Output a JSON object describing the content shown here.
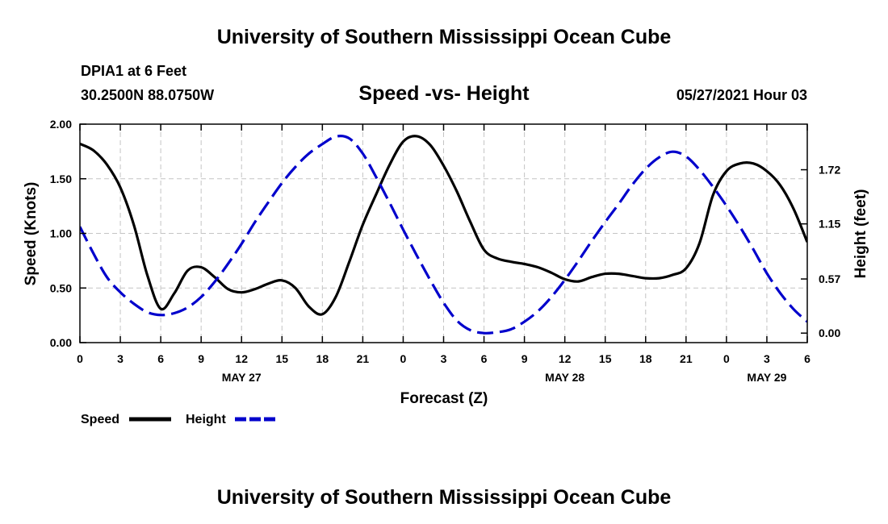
{
  "header": {
    "title": "University of Southern Mississippi Ocean Cube",
    "station": "DPIA1 at 6 Feet",
    "coords": "30.2500N  88.0750W",
    "subtitle": "Speed -vs- Height",
    "datetime": "05/27/2021 Hour 03"
  },
  "footer": {
    "title": "University of Southern Mississippi Ocean Cube"
  },
  "chart_data": {
    "type": "line",
    "title": "Speed -vs- Height",
    "xlabel": "Forecast (Z)",
    "ylabel": "Speed (Knots)",
    "y2label": "Height (feet)",
    "xlim": [
      0,
      54
    ],
    "ylim": [
      0,
      2
    ],
    "y2lim": [
      -0.1,
      2.2
    ],
    "grid": true,
    "x_ticks": [
      {
        "x": 0,
        "label": "0"
      },
      {
        "x": 3,
        "label": "3"
      },
      {
        "x": 6,
        "label": "6"
      },
      {
        "x": 9,
        "label": "9"
      },
      {
        "x": 12,
        "label": "12"
      },
      {
        "x": 15,
        "label": "15"
      },
      {
        "x": 18,
        "label": "18"
      },
      {
        "x": 21,
        "label": "21"
      },
      {
        "x": 24,
        "label": "0"
      },
      {
        "x": 27,
        "label": "3"
      },
      {
        "x": 30,
        "label": "6"
      },
      {
        "x": 33,
        "label": "9"
      },
      {
        "x": 36,
        "label": "12"
      },
      {
        "x": 39,
        "label": "15"
      },
      {
        "x": 42,
        "label": "18"
      },
      {
        "x": 45,
        "label": "21"
      },
      {
        "x": 48,
        "label": "0"
      },
      {
        "x": 51,
        "label": "3"
      },
      {
        "x": 54,
        "label": "6"
      }
    ],
    "date_labels": [
      {
        "x": 12,
        "label": "MAY 27"
      },
      {
        "x": 36,
        "label": "MAY 28"
      },
      {
        "x": 51,
        "label": "MAY 29"
      }
    ],
    "y_ticks": [
      {
        "v": 0,
        "label": "0.00"
      },
      {
        "v": 0.5,
        "label": "0.50"
      },
      {
        "v": 1,
        "label": "1.00"
      },
      {
        "v": 1.5,
        "label": "1.50"
      },
      {
        "v": 2,
        "label": "2.00"
      }
    ],
    "y2_ticks": [
      {
        "v": 0,
        "label": "0.00"
      },
      {
        "v": 0.57,
        "label": "0.57"
      },
      {
        "v": 1.15,
        "label": "1.15"
      },
      {
        "v": 1.72,
        "label": "1.72"
      }
    ],
    "series": [
      {
        "name": "Speed",
        "axis": "left",
        "color": "#000000",
        "dash": "solid",
        "x": [
          0,
          1,
          2,
          3,
          4,
          5,
          6,
          7,
          8,
          9,
          10,
          11,
          12,
          13,
          14,
          15,
          16,
          17,
          18,
          19,
          20,
          21,
          22,
          23,
          24,
          25,
          26,
          27,
          28,
          29,
          30,
          31,
          32,
          33,
          34,
          35,
          36,
          37,
          38,
          39,
          40,
          41,
          42,
          43,
          44,
          45,
          46,
          47,
          48,
          49,
          50,
          51,
          52,
          53,
          54
        ],
        "values": [
          1.82,
          1.76,
          1.63,
          1.42,
          1.08,
          0.62,
          0.31,
          0.45,
          0.66,
          0.69,
          0.6,
          0.49,
          0.46,
          0.49,
          0.54,
          0.57,
          0.5,
          0.33,
          0.26,
          0.42,
          0.74,
          1.08,
          1.36,
          1.63,
          1.84,
          1.89,
          1.81,
          1.62,
          1.38,
          1.1,
          0.85,
          0.77,
          0.74,
          0.72,
          0.69,
          0.64,
          0.58,
          0.56,
          0.6,
          0.63,
          0.63,
          0.61,
          0.59,
          0.59,
          0.62,
          0.68,
          0.91,
          1.35,
          1.57,
          1.64,
          1.64,
          1.57,
          1.44,
          1.22,
          0.92
        ]
      },
      {
        "name": "Height",
        "axis": "right",
        "color": "#0000cc",
        "dash": "dashed",
        "x": [
          0,
          1,
          2,
          3,
          4,
          5,
          6,
          7,
          8,
          9,
          10,
          11,
          12,
          13,
          14,
          15,
          16,
          17,
          18,
          19,
          20,
          21,
          22,
          23,
          24,
          25,
          26,
          27,
          28,
          29,
          30,
          31,
          32,
          33,
          34,
          35,
          36,
          37,
          38,
          39,
          40,
          41,
          42,
          43,
          44,
          45,
          46,
          47,
          48,
          49,
          50,
          51,
          52,
          53,
          54
        ],
        "values": [
          1.12,
          0.84,
          0.59,
          0.43,
          0.31,
          0.22,
          0.19,
          0.21,
          0.27,
          0.38,
          0.54,
          0.73,
          0.94,
          1.17,
          1.38,
          1.58,
          1.75,
          1.89,
          1.99,
          2.07,
          2.05,
          1.89,
          1.64,
          1.37,
          1.09,
          0.82,
          0.56,
          0.32,
          0.13,
          0.03,
          0.0,
          0.01,
          0.04,
          0.12,
          0.23,
          0.38,
          0.56,
          0.76,
          0.97,
          1.17,
          1.36,
          1.56,
          1.73,
          1.85,
          1.91,
          1.86,
          1.72,
          1.54,
          1.34,
          1.12,
          0.88,
          0.63,
          0.42,
          0.25,
          0.12
        ]
      }
    ],
    "legend": [
      {
        "label": "Speed",
        "color": "#000000",
        "dash": "solid"
      },
      {
        "label": "Height",
        "color": "#0000cc",
        "dash": "dashed"
      }
    ]
  }
}
